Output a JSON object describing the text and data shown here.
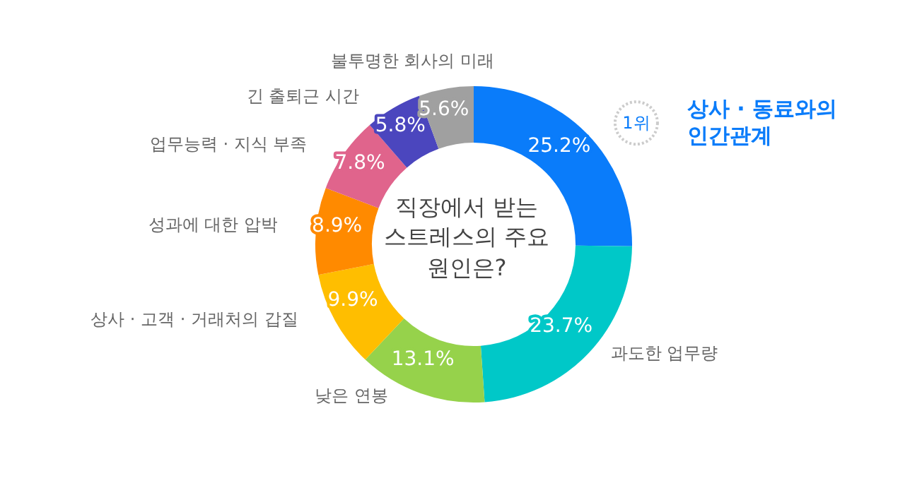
{
  "chart_data": {
    "type": "donut",
    "title": "직장에서 받는 스트레스의 주요 원인은?",
    "categories": [
      "상사 · 동료와의 인간관계",
      "과도한 업무량",
      "낮은 연봉",
      "상사 · 고객 · 거래처의 갑질",
      "성과에 대한 압박",
      "업무능력 · 지식 부족",
      "긴 출퇴근 시간",
      "불투명한 회사의 미래"
    ],
    "values": [
      25.2,
      23.7,
      13.1,
      9.9,
      8.9,
      7.8,
      5.8,
      5.6
    ],
    "value_labels": [
      "25.2%",
      "23.7%",
      "13.1%",
      "9.9%",
      "8.9%",
      "7.8%",
      "5.8%",
      "5.6%"
    ],
    "colors": [
      "#0a7cfa",
      "#00c8c8",
      "#96d24b",
      "#ffbe00",
      "#ff8a00",
      "#e0648c",
      "#4b46be",
      "#a0a0a0"
    ],
    "annotations": [
      "1위"
    ],
    "legend": false
  }
}
